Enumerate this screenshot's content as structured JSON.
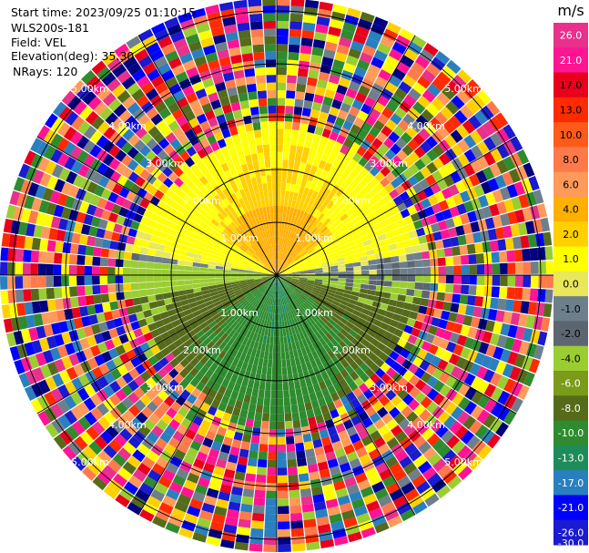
{
  "header": {
    "start_time": "Start time: 2023/09/25 01:10:15",
    "site": "WLS200s-181",
    "field": "Field: VEL",
    "elevation": "Elevation(deg): 35.30",
    "nrays": "NRays: 120"
  },
  "colorbar": {
    "unit": "m/s",
    "labels": [
      "26.0",
      "21.0",
      "17.0",
      "13.0",
      "10.0",
      "8.0",
      "6.0",
      "4.0",
      "2.0",
      "1.0",
      "0.0",
      "-1.0",
      "-2.0",
      "-4.0",
      "-6.0",
      "-8.0",
      "-10.0",
      "-13.0",
      "-17.0",
      "-21.0",
      "-26.0",
      "-30.0"
    ],
    "colors": [
      "#e8308c",
      "#ff1493",
      "#e8001c",
      "#ff2a00",
      "#ff5a1a",
      "#ff7a4a",
      "#ff9a5a",
      "#ffb000",
      "#ffd000",
      "#ffff00",
      "#e8e85a",
      "#6e7f8c",
      "#5c6670",
      "#9acd32",
      "#7a9a1a",
      "#556b1a",
      "#2e8b2e",
      "#1e8c5a",
      "#2a7fbf",
      "#0000ff",
      "#1a1ad0",
      "#000080"
    ]
  },
  "chart_data": {
    "type": "heatmap",
    "title": "",
    "field": "VEL",
    "units": "m/s",
    "range_rings_km": [
      1.0,
      2.0,
      3.0,
      4.0,
      5.0
    ],
    "range_ring_labels": [
      "1.00km",
      "2.00km",
      "3.00km",
      "4.00km",
      "5.00km"
    ],
    "n_rays": 120,
    "elevation_deg": 35.3,
    "colorbar_ticks": [
      -30.0,
      -26.0,
      -21.0,
      -17.0,
      -13.0,
      -10.0,
      -8.0,
      -6.0,
      -4.0,
      -2.0,
      -1.0,
      0.0,
      1.0,
      2.0,
      4.0,
      6.0,
      8.0,
      10.0,
      13.0,
      17.0,
      21.0,
      26.0
    ],
    "velocity_pattern": {
      "north_sector_inner_km": [
        0,
        2.9
      ],
      "north_values_ms": [
        1.0,
        6.0
      ],
      "south_sector_inner_km": [
        0,
        2.9
      ],
      "south_values_ms": [
        -6.0,
        -1.0
      ],
      "noise_beyond_km": 2.9
    }
  }
}
